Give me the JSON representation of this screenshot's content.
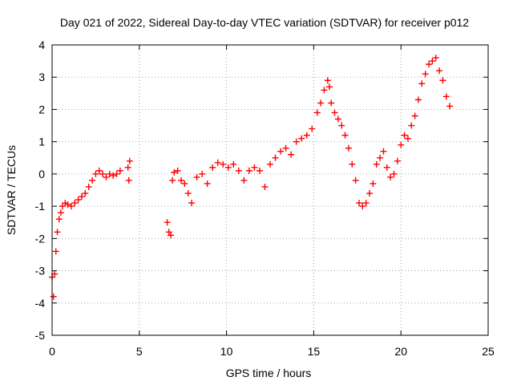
{
  "chart_data": {
    "type": "scatter",
    "title": "Day 021 of 2022, Sidereal Day-to-day VTEC variation (SDTVAR) for receiver p012",
    "xlabel": "GPS time / hours",
    "ylabel": "SDTVAR / TECUs",
    "xlim": [
      0,
      25
    ],
    "ylim": [
      -5,
      4
    ],
    "xticks": [
      0,
      5,
      10,
      15,
      20,
      25
    ],
    "yticks": [
      -5,
      -4,
      -3,
      -2,
      -1,
      0,
      1,
      2,
      3,
      4
    ],
    "xtick_labels": [
      "0",
      "5",
      "10",
      "15",
      "20",
      "25"
    ],
    "ytick_labels": [
      "-5",
      "-4",
      "-3",
      "-2",
      "-1",
      "0",
      "1",
      "2",
      "3",
      "4"
    ],
    "grid": true,
    "marker": "+",
    "color": "#ff0000",
    "series": [
      {
        "name": "SDTVAR",
        "x": [
          0.0,
          0.08,
          0.15,
          0.22,
          0.3,
          0.4,
          0.5,
          0.6,
          0.75,
          0.9,
          1.1,
          1.3,
          1.5,
          1.7,
          1.9,
          2.1,
          2.3,
          2.5,
          2.7,
          2.9,
          3.1,
          3.3,
          3.5,
          3.7,
          3.9,
          4.35,
          4.4,
          4.45,
          6.6,
          6.7,
          6.8,
          6.9,
          7.0,
          7.2,
          7.4,
          7.6,
          7.8,
          8.0,
          8.3,
          8.6,
          8.9,
          9.2,
          9.5,
          9.8,
          10.1,
          10.4,
          10.7,
          11.0,
          11.3,
          11.6,
          11.9,
          12.2,
          12.5,
          12.8,
          13.1,
          13.4,
          13.7,
          14.0,
          14.3,
          14.6,
          14.9,
          15.2,
          15.4,
          15.6,
          15.8,
          15.9,
          16.0,
          16.2,
          16.4,
          16.6,
          16.8,
          17.0,
          17.2,
          17.4,
          17.6,
          17.8,
          18.0,
          18.2,
          18.4,
          18.6,
          18.8,
          19.0,
          19.2,
          19.4,
          19.6,
          19.8,
          20.0,
          20.2,
          20.4,
          20.6,
          20.8,
          21.0,
          21.2,
          21.4,
          21.6,
          21.8,
          22.0,
          22.2,
          22.4,
          22.6,
          22.8
        ],
        "y": [
          -3.2,
          -3.8,
          -3.1,
          -2.4,
          -1.8,
          -1.4,
          -1.2,
          -1.0,
          -0.9,
          -0.95,
          -1.0,
          -0.9,
          -0.8,
          -0.7,
          -0.6,
          -0.4,
          -0.2,
          0.0,
          0.1,
          0.0,
          -0.1,
          0.0,
          -0.05,
          0.0,
          0.1,
          0.2,
          -0.2,
          0.4,
          -1.5,
          -1.8,
          -1.9,
          -0.2,
          0.05,
          0.1,
          -0.2,
          -0.3,
          -0.6,
          -0.9,
          -0.1,
          0.0,
          -0.3,
          0.2,
          0.35,
          0.3,
          0.2,
          0.3,
          0.1,
          -0.2,
          0.1,
          0.2,
          0.1,
          -0.4,
          0.3,
          0.5,
          0.7,
          0.8,
          0.6,
          1.0,
          1.1,
          1.2,
          1.4,
          1.9,
          2.2,
          2.6,
          2.9,
          2.7,
          2.2,
          1.9,
          1.7,
          1.5,
          1.2,
          0.8,
          0.3,
          -0.2,
          -0.9,
          -1.0,
          -0.9,
          -0.6,
          -0.3,
          0.3,
          0.5,
          0.7,
          0.2,
          -0.1,
          0.0,
          0.4,
          0.9,
          1.2,
          1.1,
          1.5,
          1.8,
          2.3,
          2.8,
          3.1,
          3.4,
          3.5,
          3.6,
          3.2,
          2.9,
          2.4,
          2.1
        ]
      }
    ]
  }
}
